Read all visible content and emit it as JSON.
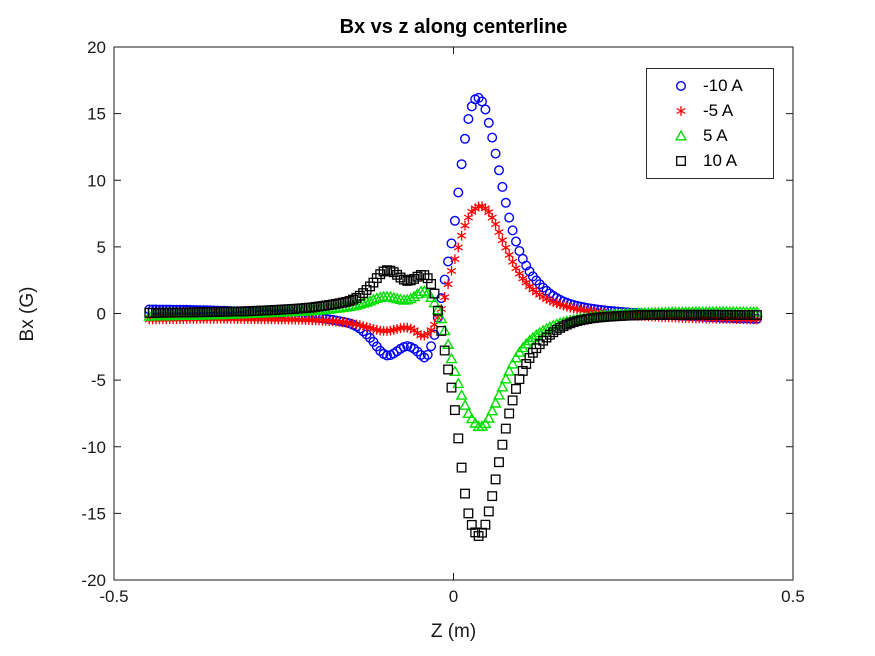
{
  "chart_data": {
    "type": "scatter",
    "title": "Bx vs z along centerline",
    "xlabel": "Z (m)",
    "ylabel": "Bx (G)",
    "xlim": [
      -0.5,
      0.5
    ],
    "ylim": [
      -20,
      20
    ],
    "x_ticks": [
      -0.5,
      0,
      0.5
    ],
    "x_tick_labels": [
      "-0.5",
      "0",
      "0.5"
    ],
    "y_ticks": [
      -20,
      -15,
      -10,
      -5,
      0,
      5,
      10,
      15,
      20
    ],
    "y_tick_labels": [
      "-20",
      "-15",
      "-10",
      "-5",
      "0",
      "5",
      "10",
      "15",
      "20"
    ],
    "grid": false,
    "legend_position": "top-right",
    "background_color": "#ffffff",
    "axis_color": "#1a1a1a",
    "marker_step_m": 0.005,
    "series": [
      {
        "name": "-10 A",
        "marker": "circle",
        "color": "#0000FF",
        "points": [
          [
            -0.448,
            0.3
          ],
          [
            -0.4,
            0.28
          ],
          [
            -0.35,
            0.22
          ],
          [
            -0.3,
            0.12
          ],
          [
            -0.25,
            -0.05
          ],
          [
            -0.21,
            -0.25
          ],
          [
            -0.17,
            -0.55
          ],
          [
            -0.15,
            -0.8
          ],
          [
            -0.135,
            -1.25
          ],
          [
            -0.12,
            -2.0
          ],
          [
            -0.108,
            -2.8
          ],
          [
            -0.098,
            -3.15
          ],
          [
            -0.088,
            -3.0
          ],
          [
            -0.078,
            -2.65
          ],
          [
            -0.068,
            -2.45
          ],
          [
            -0.058,
            -2.65
          ],
          [
            -0.05,
            -3.0
          ],
          [
            -0.044,
            -3.3
          ],
          [
            -0.038,
            -3.1
          ],
          [
            -0.032,
            -2.3
          ],
          [
            -0.027,
            -1.4
          ],
          [
            -0.024,
            -0.6
          ],
          [
            -0.021,
            0.3
          ],
          [
            -0.015,
            2.0
          ],
          [
            -0.008,
            3.9
          ],
          [
            0,
            6.2
          ],
          [
            0.008,
            9.5
          ],
          [
            0.015,
            12.4
          ],
          [
            0.022,
            14.6
          ],
          [
            0.029,
            15.8
          ],
          [
            0.036,
            16.2
          ],
          [
            0.045,
            15.6
          ],
          [
            0.053,
            14.1
          ],
          [
            0.062,
            12.0
          ],
          [
            0.072,
            9.5
          ],
          [
            0.082,
            7.2
          ],
          [
            0.092,
            5.4
          ],
          [
            0.102,
            4.1
          ],
          [
            0.114,
            3.0
          ],
          [
            0.127,
            2.2
          ],
          [
            0.142,
            1.5
          ],
          [
            0.16,
            0.95
          ],
          [
            0.18,
            0.6
          ],
          [
            0.205,
            0.35
          ],
          [
            0.24,
            0.15
          ],
          [
            0.28,
            0.0
          ],
          [
            0.33,
            -0.15
          ],
          [
            0.39,
            -0.3
          ],
          [
            0.447,
            -0.4
          ]
        ]
      },
      {
        "name": "-5 A",
        "marker": "asterisk",
        "color": "#FF0000",
        "points": [
          [
            -0.448,
            -0.45
          ],
          [
            -0.4,
            -0.42
          ],
          [
            -0.35,
            -0.4
          ],
          [
            -0.3,
            -0.42
          ],
          [
            -0.25,
            -0.45
          ],
          [
            -0.21,
            -0.5
          ],
          [
            -0.17,
            -0.62
          ],
          [
            -0.145,
            -0.8
          ],
          [
            -0.125,
            -1.05
          ],
          [
            -0.108,
            -1.28
          ],
          [
            -0.095,
            -1.3
          ],
          [
            -0.082,
            -1.15
          ],
          [
            -0.07,
            -1.05
          ],
          [
            -0.058,
            -1.25
          ],
          [
            -0.048,
            -1.65
          ],
          [
            -0.04,
            -1.6
          ],
          [
            -0.033,
            -1.25
          ],
          [
            -0.027,
            -0.75
          ],
          [
            -0.022,
            -0.2
          ],
          [
            -0.017,
            0.5
          ],
          [
            -0.01,
            1.8
          ],
          [
            -0.003,
            3.2
          ],
          [
            0.005,
            4.6
          ],
          [
            0.013,
            6.0
          ],
          [
            0.021,
            7.1
          ],
          [
            0.03,
            7.8
          ],
          [
            0.042,
            8.05
          ],
          [
            0.052,
            7.6
          ],
          [
            0.062,
            6.7
          ],
          [
            0.072,
            5.5
          ],
          [
            0.082,
            4.4
          ],
          [
            0.092,
            3.4
          ],
          [
            0.104,
            2.5
          ],
          [
            0.118,
            1.75
          ],
          [
            0.135,
            1.15
          ],
          [
            0.155,
            0.7
          ],
          [
            0.18,
            0.35
          ],
          [
            0.21,
            0.1
          ],
          [
            0.25,
            -0.1
          ],
          [
            0.3,
            -0.25
          ],
          [
            0.35,
            -0.35
          ],
          [
            0.4,
            -0.4
          ],
          [
            0.447,
            -0.45
          ]
        ]
      },
      {
        "name": "5 A",
        "marker": "triangle",
        "color": "#00DF00",
        "points": [
          [
            -0.448,
            -0.2
          ],
          [
            -0.4,
            -0.15
          ],
          [
            -0.35,
            -0.1
          ],
          [
            -0.3,
            0.0
          ],
          [
            -0.25,
            0.1
          ],
          [
            -0.21,
            0.2
          ],
          [
            -0.17,
            0.4
          ],
          [
            -0.145,
            0.6
          ],
          [
            -0.125,
            0.9
          ],
          [
            -0.108,
            1.2
          ],
          [
            -0.095,
            1.25
          ],
          [
            -0.082,
            1.1
          ],
          [
            -0.07,
            1.0
          ],
          [
            -0.058,
            1.25
          ],
          [
            -0.048,
            1.65
          ],
          [
            -0.04,
            1.6
          ],
          [
            -0.033,
            1.2
          ],
          [
            -0.027,
            0.7
          ],
          [
            -0.022,
            0.15
          ],
          [
            -0.017,
            -0.55
          ],
          [
            -0.01,
            -1.9
          ],
          [
            -0.003,
            -3.4
          ],
          [
            0.005,
            -4.9
          ],
          [
            0.013,
            -6.3
          ],
          [
            0.021,
            -7.4
          ],
          [
            0.03,
            -8.1
          ],
          [
            0.038,
            -8.5
          ],
          [
            0.048,
            -8.2
          ],
          [
            0.058,
            -7.2
          ],
          [
            0.068,
            -6.0
          ],
          [
            0.078,
            -4.8
          ],
          [
            0.088,
            -3.7
          ],
          [
            0.1,
            -2.7
          ],
          [
            0.114,
            -1.95
          ],
          [
            0.13,
            -1.35
          ],
          [
            0.15,
            -0.85
          ],
          [
            0.175,
            -0.5
          ],
          [
            0.205,
            -0.25
          ],
          [
            0.245,
            -0.05
          ],
          [
            0.29,
            0.05
          ],
          [
            0.34,
            0.1
          ],
          [
            0.4,
            0.12
          ],
          [
            0.447,
            0.1
          ]
        ]
      },
      {
        "name": "10 A",
        "marker": "square",
        "color": "#000000",
        "points": [
          [
            -0.448,
            0.05
          ],
          [
            -0.4,
            0.08
          ],
          [
            -0.35,
            0.12
          ],
          [
            -0.3,
            0.18
          ],
          [
            -0.25,
            0.3
          ],
          [
            -0.21,
            0.45
          ],
          [
            -0.17,
            0.75
          ],
          [
            -0.15,
            1.0
          ],
          [
            -0.135,
            1.45
          ],
          [
            -0.12,
            2.2
          ],
          [
            -0.108,
            2.95
          ],
          [
            -0.098,
            3.25
          ],
          [
            -0.088,
            3.1
          ],
          [
            -0.078,
            2.7
          ],
          [
            -0.068,
            2.45
          ],
          [
            -0.058,
            2.6
          ],
          [
            -0.05,
            2.85
          ],
          [
            -0.044,
            2.9
          ],
          [
            -0.038,
            2.65
          ],
          [
            -0.032,
            2.1
          ],
          [
            -0.027,
            1.3
          ],
          [
            -0.024,
            0.5
          ],
          [
            -0.021,
            -0.4
          ],
          [
            -0.015,
            -2.2
          ],
          [
            -0.008,
            -4.2
          ],
          [
            0,
            -6.5
          ],
          [
            0.008,
            -9.8
          ],
          [
            0.015,
            -12.8
          ],
          [
            0.022,
            -15.0
          ],
          [
            0.029,
            -16.1
          ],
          [
            0.037,
            -16.7
          ],
          [
            0.046,
            -16.0
          ],
          [
            0.054,
            -14.4
          ],
          [
            0.063,
            -12.2
          ],
          [
            0.073,
            -9.6
          ],
          [
            0.083,
            -7.3
          ],
          [
            0.093,
            -5.5
          ],
          [
            0.103,
            -4.2
          ],
          [
            0.115,
            -3.1
          ],
          [
            0.128,
            -2.25
          ],
          [
            0.143,
            -1.55
          ],
          [
            0.16,
            -1.0
          ],
          [
            0.18,
            -0.6
          ],
          [
            0.205,
            -0.35
          ],
          [
            0.24,
            -0.2
          ],
          [
            0.28,
            -0.12
          ],
          [
            0.33,
            -0.1
          ],
          [
            0.39,
            -0.1
          ],
          [
            0.447,
            -0.12
          ]
        ]
      }
    ]
  }
}
